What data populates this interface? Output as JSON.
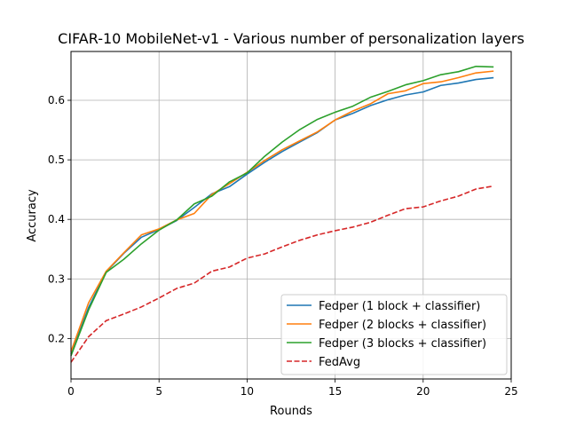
{
  "chart_data": {
    "type": "line",
    "title": "CIFAR-10 MobileNet-v1 - Various number of personalization layers",
    "xlabel": "Rounds",
    "ylabel": "Accuracy",
    "xlim": [
      0,
      25
    ],
    "ylim": [
      0.132,
      0.682
    ],
    "xticks": [
      "0",
      "5",
      "10",
      "15",
      "20",
      "25"
    ],
    "yticks": [
      "0.2",
      "0.3",
      "0.4",
      "0.5",
      "0.6"
    ],
    "grid": true,
    "legend_position": "lower-right",
    "x": [
      0,
      1,
      2,
      3,
      4,
      5,
      6,
      7,
      8,
      9,
      10,
      11,
      12,
      13,
      14,
      15,
      16,
      17,
      18,
      19,
      20,
      21,
      22,
      23,
      24
    ],
    "series": [
      {
        "name": "Fedper (1 block + classifier)",
        "color": "#1f77b4",
        "style": "solid",
        "values": [
          0.174,
          0.252,
          0.312,
          0.343,
          0.37,
          0.383,
          0.398,
          0.42,
          0.443,
          0.455,
          0.476,
          0.496,
          0.514,
          0.53,
          0.546,
          0.567,
          0.578,
          0.591,
          0.601,
          0.609,
          0.614,
          0.625,
          0.629,
          0.635,
          0.638
        ]
      },
      {
        "name": "Fedper (2 blocks + classifier)",
        "color": "#ff7f0e",
        "style": "solid",
        "values": [
          0.178,
          0.26,
          0.313,
          0.344,
          0.374,
          0.384,
          0.399,
          0.41,
          0.442,
          0.46,
          0.479,
          0.499,
          0.517,
          0.532,
          0.547,
          0.567,
          0.582,
          0.594,
          0.611,
          0.616,
          0.628,
          0.631,
          0.638,
          0.646,
          0.649
        ]
      },
      {
        "name": "Fedper (3 blocks + classifier)",
        "color": "#2ca02c",
        "style": "solid",
        "values": [
          0.171,
          0.248,
          0.311,
          0.333,
          0.359,
          0.382,
          0.399,
          0.426,
          0.439,
          0.463,
          0.478,
          0.506,
          0.53,
          0.551,
          0.568,
          0.58,
          0.59,
          0.605,
          0.615,
          0.626,
          0.633,
          0.643,
          0.648,
          0.657,
          0.656
        ]
      },
      {
        "name": "FedAvg",
        "color": "#d62728",
        "style": "dashed",
        "values": [
          0.16,
          0.203,
          0.23,
          0.241,
          0.253,
          0.268,
          0.284,
          0.293,
          0.313,
          0.32,
          0.335,
          0.342,
          0.354,
          0.365,
          0.374,
          0.381,
          0.387,
          0.395,
          0.407,
          0.418,
          0.421,
          0.431,
          0.439,
          0.451,
          0.456
        ]
      }
    ]
  }
}
